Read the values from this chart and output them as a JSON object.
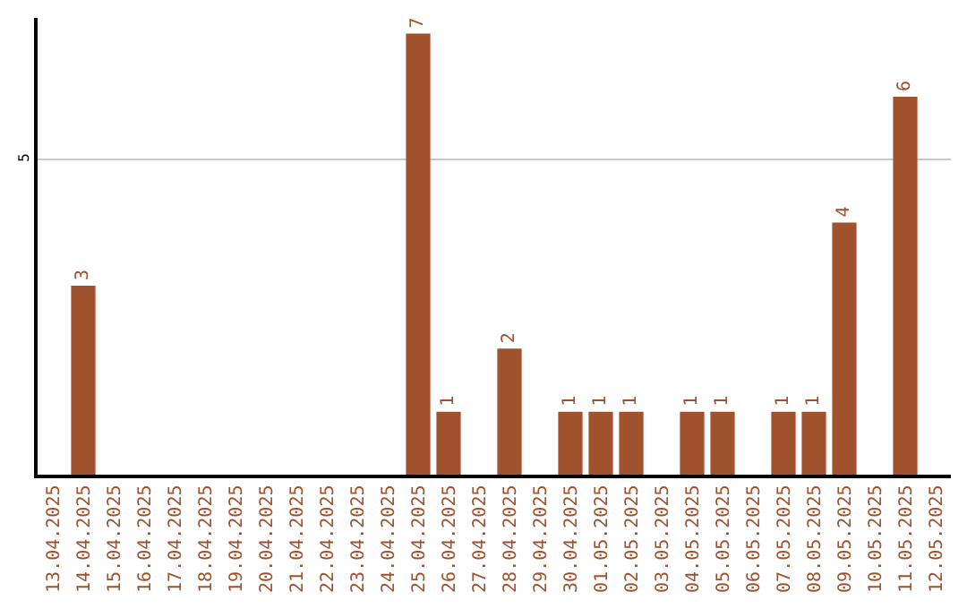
{
  "chart_data": {
    "type": "bar",
    "categories": [
      "13.04.2025",
      "14.04.2025",
      "15.04.2025",
      "16.04.2025",
      "17.04.2025",
      "18.04.2025",
      "19.04.2025",
      "20.04.2025",
      "21.04.2025",
      "22.04.2025",
      "23.04.2025",
      "24.04.2025",
      "25.04.2025",
      "26.04.2025",
      "27.04.2025",
      "28.04.2025",
      "29.04.2025",
      "30.04.2025",
      "01.05.2025",
      "02.05.2025",
      "03.05.2025",
      "04.05.2025",
      "05.05.2025",
      "06.05.2025",
      "07.05.2025",
      "08.05.2025",
      "09.05.2025",
      "10.05.2025",
      "11.05.2025",
      "12.05.2025"
    ],
    "values": [
      null,
      3,
      null,
      null,
      null,
      null,
      null,
      null,
      null,
      null,
      null,
      null,
      7,
      1,
      null,
      2,
      null,
      1,
      1,
      1,
      null,
      1,
      1,
      null,
      1,
      1,
      4,
      null,
      6,
      null
    ],
    "color": "#a0522d",
    "ylim": [
      0,
      7.25
    ],
    "yticks": [
      5
    ],
    "grid": "y",
    "data_labels": true,
    "legend": false
  }
}
